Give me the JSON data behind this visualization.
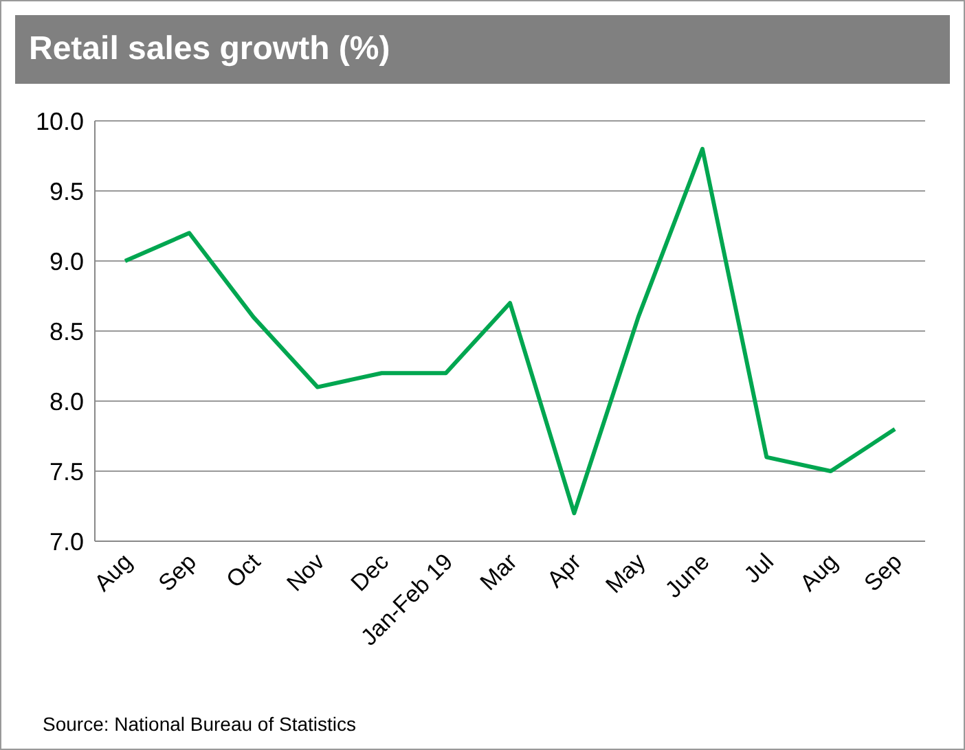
{
  "chart_data": {
    "type": "line",
    "title": "Retail sales growth (%)",
    "categories": [
      "Aug",
      "Sep",
      "Oct",
      "Nov",
      "Dec",
      "Jan-Feb 19",
      "Mar",
      "Apr",
      "May",
      "June",
      "Jul",
      "Aug",
      "Sep"
    ],
    "series": [
      {
        "color": "#00a650",
        "values": [
          9.0,
          9.2,
          8.6,
          8.1,
          8.2,
          8.2,
          8.7,
          7.2,
          8.6,
          9.8,
          7.6,
          7.5,
          7.8
        ]
      }
    ],
    "ylim": [
      7.0,
      10.0
    ],
    "yticks": [
      {
        "value": 7,
        "label": "7.0"
      },
      {
        "value": 7.5,
        "label": "7.5"
      },
      {
        "value": 8,
        "label": "8.0"
      },
      {
        "value": 8.5,
        "label": "8.5"
      },
      {
        "value": 9,
        "label": "9.0"
      },
      {
        "value": 9.5,
        "label": "9.5"
      },
      {
        "value": 10,
        "label": "10.0"
      }
    ],
    "grid": "y",
    "legend": false,
    "marker": "none",
    "line_style": "solid",
    "annotations": [
      "Source: National Bureau of Statistics"
    ]
  }
}
